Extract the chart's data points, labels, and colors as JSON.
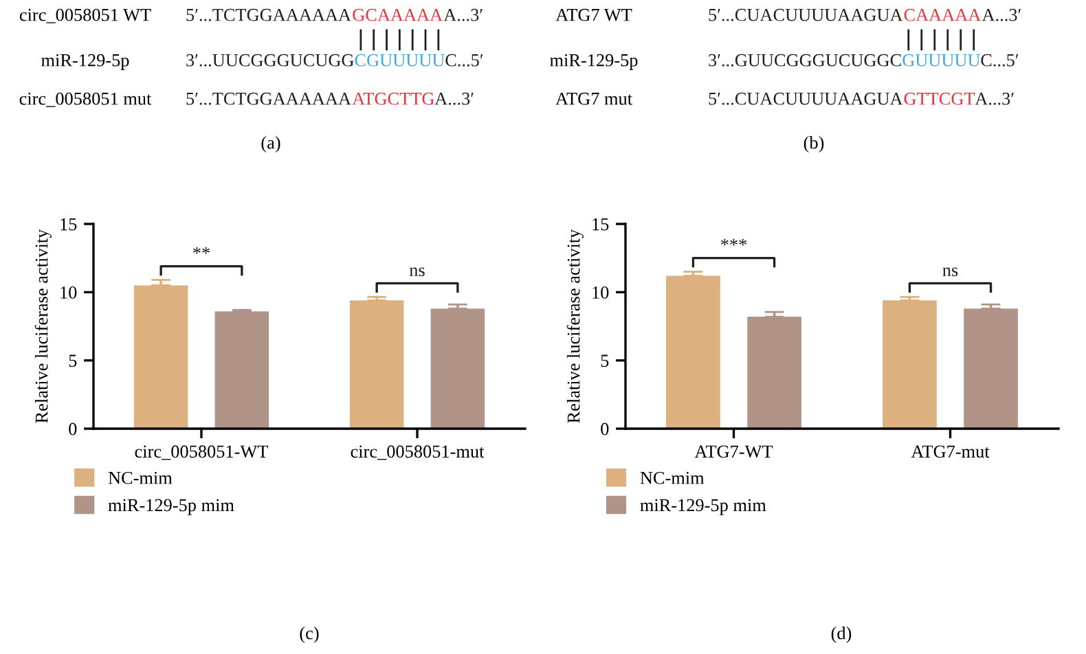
{
  "chart_data": [
    {
      "type": "other",
      "title": "(a)",
      "categories": [
        "circ_0058051 WT",
        "miR-129-5p",
        "circ_0058051 mut"
      ],
      "annotations": [
        "5′...TCTGGAAAAAA",
        "GCAAAAA",
        "A...3′",
        "3′...UUCGGGUCUGG",
        "CGUUUUU",
        "C...5′",
        "5′...TCTGGAAAAAA",
        "ATGCTTG",
        "A...3′"
      ],
      "colors": [
        "#231f20",
        "#e8323c",
        "#231f20",
        "#231f20",
        "#3ba9e0",
        "#231f20",
        "#231f20",
        "#e8323c",
        "#231f20"
      ]
    },
    {
      "type": "other",
      "title": "(b)",
      "categories": [
        "ATG7 WT",
        "miR-129-5p",
        "ATG7 mut"
      ],
      "annotations": [
        "5′...CUACUUUUAAGUA",
        "CAAAAA",
        "A...3′",
        "3′...GUUCGGGUCUGGC",
        "GUUUUU",
        "C...5′",
        "5′...CUACUUUUAAGUA",
        "GTTCGT",
        "A...3′"
      ],
      "colors": [
        "#231f20",
        "#e8323c",
        "#231f20",
        "#231f20",
        "#3ba9e0",
        "#231f20",
        "#231f20",
        "#e8323c",
        "#231f20"
      ]
    },
    {
      "type": "bar",
      "title": "(c)",
      "ylabel": "Relative luciferase activity",
      "categories": [
        "circ_0058051-WT",
        "circ_0058051-mut"
      ],
      "series": [
        {
          "name": "NC-mim",
          "color": "#dcb07f",
          "values": [
            10.5,
            9.4
          ],
          "errors": [
            0.4,
            0.25
          ]
        },
        {
          "name": "miR-129-5p mim",
          "color": "#b09488",
          "values": [
            8.6,
            8.8
          ],
          "errors": [
            0.1,
            0.3
          ]
        }
      ],
      "annotations": [
        "**",
        "ns"
      ],
      "ylim": [
        0,
        15
      ],
      "yticks": [
        0,
        5,
        10,
        15
      ],
      "grid": false,
      "legend": "bottom"
    },
    {
      "type": "bar",
      "title": "(d)",
      "ylabel": "Relative luciferase activity",
      "categories": [
        "ATG7-WT",
        "ATG7-mut"
      ],
      "series": [
        {
          "name": "NC-mim",
          "color": "#dcb07f",
          "values": [
            11.2,
            9.4
          ],
          "errors": [
            0.3,
            0.25
          ]
        },
        {
          "name": "miR-129-5p mim",
          "color": "#b09488",
          "values": [
            8.2,
            8.8
          ],
          "errors": [
            0.35,
            0.3
          ]
        }
      ],
      "annotations": [
        "***",
        "ns"
      ],
      "ylim": [
        0,
        15
      ],
      "yticks": [
        0,
        5,
        10,
        15
      ],
      "grid": false,
      "legend": "bottom"
    }
  ]
}
